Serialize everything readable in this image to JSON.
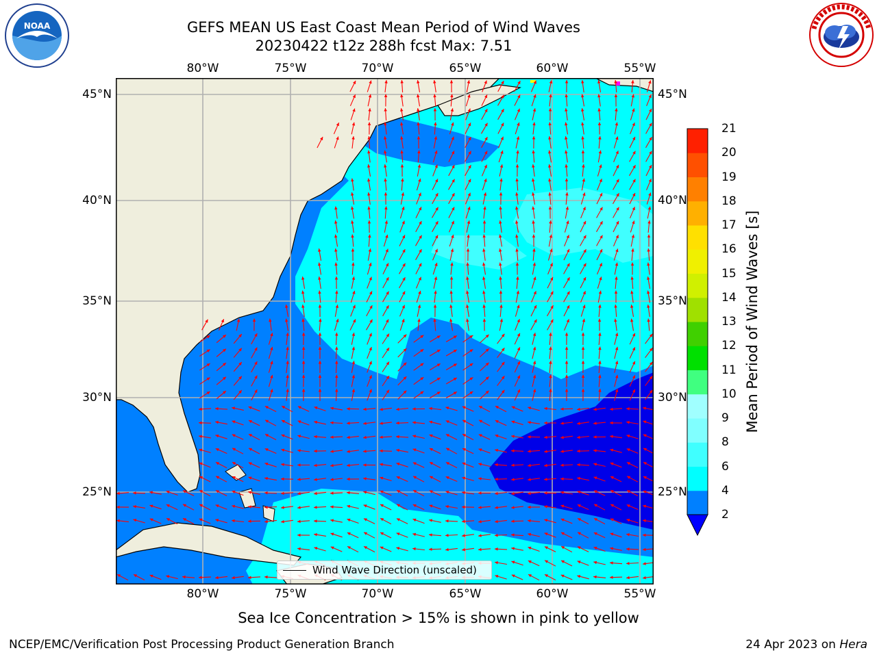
{
  "title": {
    "line1": "GEFS MEAN US East Coast Mean Period of Wind Waves",
    "line2": "20230422 t12z 288h fcst   Max: 7.51"
  },
  "longitude_labels": [
    "80°W",
    "75°W",
    "70°W",
    "65°W",
    "60°W",
    "55°W"
  ],
  "latitude_labels": [
    "45°N",
    "40°N",
    "35°N",
    "30°N",
    "25°N"
  ],
  "colorbar": {
    "label": "Mean Period of Wind Waves [s]",
    "ticks": [
      "2",
      "4",
      "6",
      "8",
      "9",
      "10",
      "11",
      "12",
      "13",
      "14",
      "15",
      "16",
      "17",
      "18",
      "19",
      "20",
      "21"
    ],
    "colors": [
      "#0080ff",
      "#00ffff",
      "#40ffff",
      "#80ffff",
      "#a0ffff",
      "#40ff80",
      "#00e000",
      "#40d000",
      "#a0e000",
      "#d0f000",
      "#f0f000",
      "#ffe000",
      "#ffb000",
      "#ff8000",
      "#ff5000",
      "#ff2000",
      "#ff0000"
    ],
    "under_color": "#0000ff"
  },
  "legend": {
    "label": "Wind Wave Direction (unscaled)"
  },
  "subtitle": "Sea Ice Concentration > 15% is shown in pink to yellow",
  "footer": {
    "left": "NCEP/EMC/Verification Post Processing Product Generation Branch",
    "right_prefix": "24 Apr 2023 on",
    "right_machine": "Hera"
  },
  "colors": {
    "land": "#efeedd",
    "ocean_low": "#0080ff",
    "ocean_mid": "#00ffff",
    "ocean_under": "#0000e8",
    "arrow": "#ff0000",
    "grid": "#b0b0b0"
  }
}
